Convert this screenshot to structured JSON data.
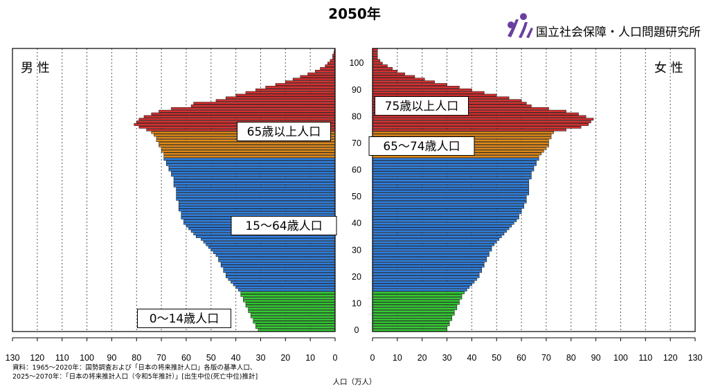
{
  "header": {
    "title": "2050年",
    "organization": "国立社会保障・人口問題研究所"
  },
  "labels": {
    "male": "男 性",
    "female": "女 性",
    "unit": "人口（万人）",
    "note_line1": "資料：1965〜2020年：国勢調査および「日本の将来推計人口」各版の基準人口、",
    "note_line2": "2025〜2070年：「日本の将来推計人口（令和5年推計）」[出生中位(死亡中位)推計]"
  },
  "chart_data": {
    "type": "bar",
    "orientation": "horizontal-pyramid",
    "title": "2050年",
    "xlabel": "人口（万人）",
    "ylabel": "",
    "xlim": [
      0,
      130
    ],
    "ages_from": 0,
    "ages_to": 105,
    "age_ticks": [
      0,
      10,
      20,
      30,
      40,
      50,
      60,
      70,
      80,
      90,
      100
    ],
    "x_ticks": [
      130,
      120,
      110,
      100,
      90,
      80,
      70,
      60,
      50,
      40,
      30,
      20,
      10,
      0
    ],
    "x_ticks_right": [
      0,
      10,
      20,
      30,
      40,
      50,
      60,
      70,
      80,
      90,
      100,
      110,
      120,
      130
    ],
    "grid": true,
    "groups": [
      {
        "label": "0〜14歳人口",
        "from": 0,
        "to": 14,
        "color": "#33cc33"
      },
      {
        "label": "15〜64歳人口",
        "from": 15,
        "to": 64,
        "color": "#2f7fe0"
      },
      {
        "label": "65〜74歳人口",
        "from": 65,
        "to": 74,
        "color": "#e08a1a"
      },
      {
        "label": "75歳以上人口",
        "from": 75,
        "to": 105,
        "color": "#d43030"
      }
    ],
    "group_labels_male": [
      "0〜14歳人口",
      "15〜64歳人口",
      "65歳以上人口"
    ],
    "group_labels_female": [
      "65〜74歳人口",
      "75歳以上人口"
    ],
    "series": [
      {
        "name": "男 性",
        "values": [
          31,
          32,
          32,
          33,
          33,
          34,
          34,
          35,
          35,
          36,
          36,
          37,
          37,
          38,
          38,
          39,
          40,
          41,
          42,
          43,
          44,
          44,
          45,
          45,
          46,
          46,
          47,
          47,
          48,
          49,
          50,
          51,
          52,
          53,
          54,
          56,
          57,
          58,
          59,
          60,
          61,
          61,
          62,
          62,
          62,
          63,
          63,
          63,
          63,
          64,
          64,
          64,
          64,
          64,
          65,
          65,
          65,
          65,
          66,
          66,
          67,
          67,
          68,
          68,
          69,
          69,
          69,
          70,
          70,
          71,
          71,
          72,
          72,
          73,
          74,
          76,
          79,
          81,
          80,
          79,
          77,
          74,
          71,
          66,
          58,
          57,
          48,
          44,
          40,
          36,
          32,
          28,
          24,
          20,
          17,
          14,
          11,
          8,
          6,
          4,
          3,
          2,
          1,
          1,
          0.5,
          0.3
        ]
      },
      {
        "name": "女 性",
        "values": [
          30,
          30,
          31,
          31,
          32,
          32,
          33,
          33,
          34,
          34,
          35,
          35,
          36,
          36,
          37,
          38,
          39,
          40,
          41,
          42,
          43,
          43,
          44,
          44,
          45,
          45,
          46,
          46,
          47,
          47,
          48,
          48,
          49,
          50,
          51,
          52,
          53,
          54,
          55,
          56,
          57,
          58,
          59,
          59,
          60,
          60,
          61,
          61,
          62,
          62,
          62,
          63,
          63,
          63,
          63,
          63,
          63,
          64,
          64,
          64,
          65,
          65,
          66,
          66,
          67,
          67,
          68,
          69,
          70,
          71,
          71,
          71,
          72,
          72,
          73,
          78,
          84,
          87,
          88,
          89,
          86,
          83,
          78,
          71,
          64,
          62,
          60,
          55,
          50,
          45,
          40,
          35,
          30,
          25,
          21,
          17,
          13,
          10,
          8,
          6,
          4,
          3,
          2,
          2,
          2,
          2
        ]
      }
    ]
  }
}
